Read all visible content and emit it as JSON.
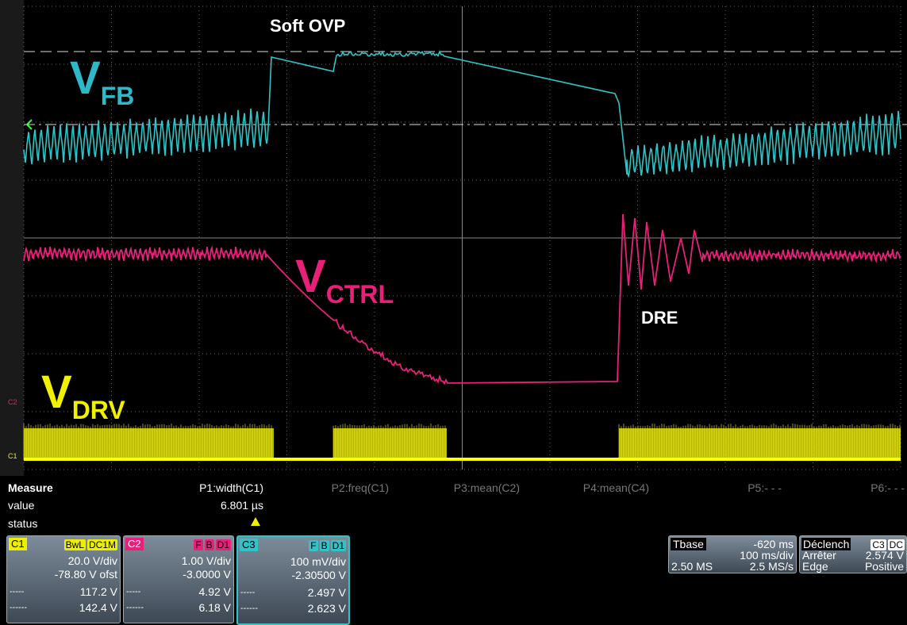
{
  "annotations": {
    "soft_ovp": "Soft OVP",
    "dre": "DRE"
  },
  "traces": {
    "fb": {
      "main": "V",
      "sub": "FB"
    },
    "ctrl": {
      "main": "V",
      "sub": "CTRL"
    },
    "drv": {
      "main": "V",
      "sub": "DRV"
    }
  },
  "side_markers": [
    "C2",
    "C1"
  ],
  "measure": {
    "title": "Measure",
    "row_labels": [
      "value",
      "status"
    ],
    "params": [
      "P1:width(C1)",
      "P2:freq(C1)",
      "P3:mean(C2)",
      "P4:mean(C4)",
      "P5:- - -",
      "P6:- - -"
    ],
    "p1_value": "6.801 µs"
  },
  "channels": [
    {
      "name": "C1",
      "badges": [
        "BwL",
        "DC1M"
      ],
      "scale": "20.0 V/div",
      "offset": "-78.80 V ofst",
      "rows": [
        [
          "-----",
          "117.2 V"
        ],
        [
          "------",
          "142.4 V"
        ]
      ]
    },
    {
      "name": "C2",
      "badges": [
        "F",
        "B",
        "D1"
      ],
      "scale": "1.00 V/div",
      "offset": "-3.0000 V",
      "rows": [
        [
          "-----",
          "4.92 V"
        ],
        [
          "------",
          "6.18 V"
        ]
      ]
    },
    {
      "name": "C3",
      "badges": [
        "F",
        "B",
        "D1"
      ],
      "scale": "100 mV/div",
      "offset": "-2.30500 V",
      "rows": [
        [
          "-----",
          "2.497 V"
        ],
        [
          "------",
          "2.623 V"
        ]
      ]
    }
  ],
  "timebase": {
    "title": "Tbase",
    "delay": "-620 ms",
    "scale": "100 ms/div",
    "points": "2.50 MS",
    "rate": "2.5 MS/s"
  },
  "trigger": {
    "title": "Déclench",
    "badges": [
      "C3",
      "DC"
    ],
    "mode": "Arrêter",
    "level": "2.574 V",
    "type": "Edge",
    "slope": "Positive"
  }
}
